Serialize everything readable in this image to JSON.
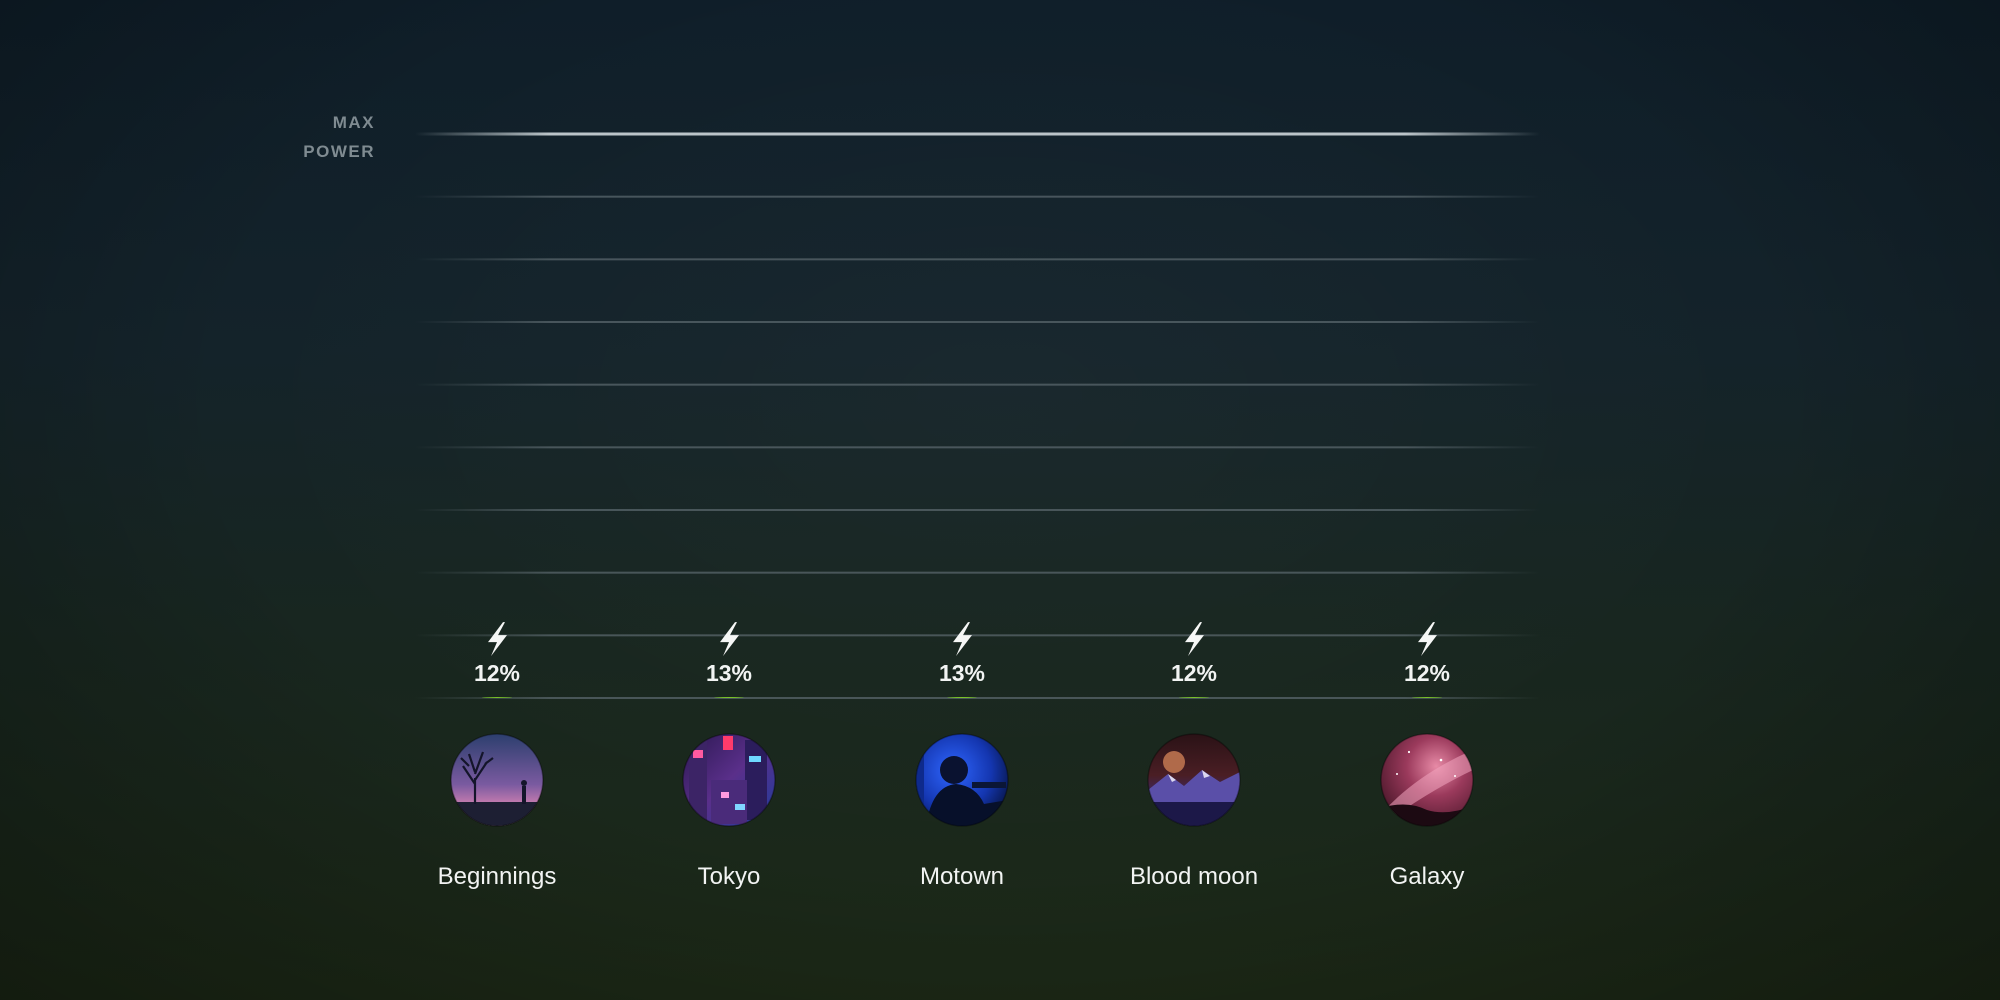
{
  "chart_data": {
    "type": "bar",
    "ylabel": [
      "MAX",
      "POWER"
    ],
    "categories": [
      "Beginnings",
      "Tokyo",
      "Motown",
      "Blood moon",
      "Galaxy"
    ],
    "values": [
      12,
      13,
      13,
      12,
      12
    ],
    "value_labels": [
      "12%",
      "13%",
      "13%",
      "12%",
      "12%"
    ],
    "ylim": [
      0,
      100
    ],
    "unit": "%",
    "grid": true,
    "bar_color": "#7fd11f",
    "marker_icon": "lightning-bolt-icon",
    "category_images": [
      "twilight-silhouette-image",
      "neon-city-street-image",
      "blue-stage-musician-image",
      "red-moon-mountains-image",
      "milky-way-sky-image"
    ]
  }
}
